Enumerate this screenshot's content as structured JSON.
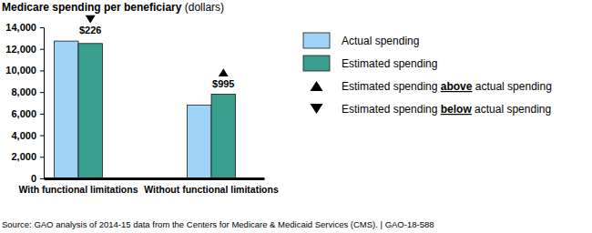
{
  "chart_data": {
    "type": "bar",
    "y_label": "Medicare spending per beneficiary",
    "y_unit": "(dollars)",
    "categories": [
      "With functional limitations",
      "Without functional limitations"
    ],
    "series": [
      {
        "name": "Actual spending",
        "color": "#9fd3f7",
        "values": [
          12726,
          6800
        ]
      },
      {
        "name": "Estimated spending",
        "color": "#3a9e8e",
        "values": [
          12500,
          7795
        ]
      }
    ],
    "differences": {
      "values": [
        226,
        995
      ],
      "value_labels": [
        "$226",
        "$995"
      ]
    },
    "legend_markers": [
      {
        "marker": "triangle-up",
        "prefix": "Estimated spending ",
        "emphasis": "above",
        "suffix": " actual spending"
      },
      {
        "marker": "triangle-down",
        "prefix": "Estimated spending ",
        "emphasis": "below",
        "suffix": " actual spending"
      }
    ],
    "ylim": [
      0,
      14000
    ],
    "yticks": [
      0,
      {
        "value": 2000,
        "label": "2,000"
      },
      {
        "value": 4000,
        "label": "4,000"
      },
      {
        "value": 6000,
        "label": "6,000"
      },
      {
        "value": 8000,
        "label": "8,000"
      },
      {
        "value": 10000,
        "label": "10,000"
      },
      {
        "value": 12000,
        "label": "12,000"
      },
      {
        "value": 14000,
        "label": "14,000"
      }
    ],
    "grid": false,
    "legend": "right",
    "source": "Source: GAO analysis of 2014-15 data from the Centers for Medicare & Medicaid Services (CMS). | GAO-18-588"
  }
}
